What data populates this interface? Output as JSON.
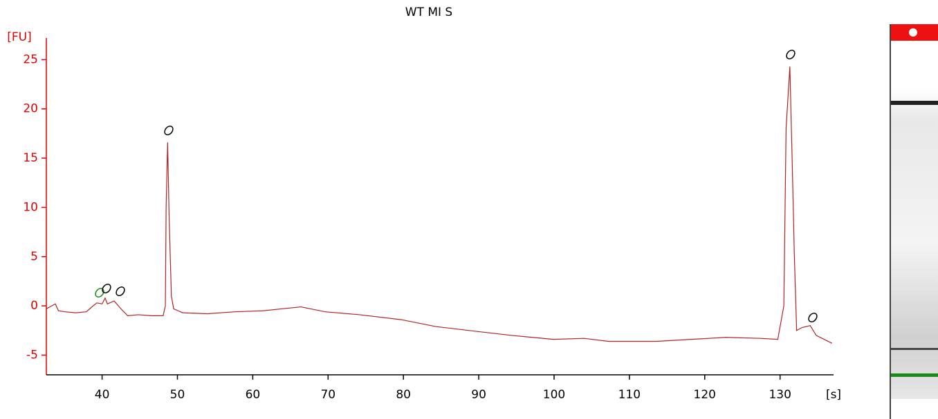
{
  "chart_data": {
    "type": "line",
    "title": "WT MI S",
    "y_label": "[FU]",
    "x_label": "[s]",
    "x": [
      32.6,
      33.8,
      34.2,
      35.1,
      36.5,
      37.9,
      38.8,
      39.3,
      40,
      40.4,
      40.7,
      41.6,
      42.5,
      43.4,
      44.8,
      46.6,
      48.1,
      48.4,
      48.5,
      48.7,
      48.9,
      49.2,
      49.5,
      50.1,
      50.7,
      54.0,
      57.6,
      61.3,
      66.4,
      69.6,
      74.2,
      79.7,
      84.3,
      89.8,
      94.4,
      99.9,
      104.0,
      107.2,
      113.6,
      118.2,
      122.8,
      127.4,
      129.7,
      130.5,
      130.8,
      131.3,
      131.6,
      131.9,
      132.2,
      132.9,
      134.0,
      134.8,
      136.9
    ],
    "series": [
      {
        "name": "WT MI S",
        "color": "#b22222",
        "values": [
          -0.3,
          0.2,
          -0.5,
          -0.6,
          -0.7,
          -0.6,
          0,
          0.3,
          0.2,
          0.8,
          0.2,
          0.5,
          -0.3,
          -1.0,
          -0.9,
          -1.0,
          -1.0,
          0,
          10,
          16.6,
          9,
          1,
          -0.3,
          -0.5,
          -0.7,
          -0.8,
          -0.6,
          -0.5,
          -0.1,
          -0.6,
          -0.9,
          -1.4,
          -2.1,
          -2.6,
          -3.0,
          -3.4,
          -3.3,
          -3.6,
          -3.6,
          -3.4,
          -3.2,
          -3.3,
          -3.4,
          0,
          18,
          24.3,
          15,
          5,
          -2.5,
          -2.2,
          -2.0,
          -3.0,
          -3.8
        ]
      }
    ],
    "xlim": [
      32.6,
      137.1
    ],
    "ylim": [
      -7,
      27.2
    ],
    "xticks": [
      40,
      50,
      60,
      70,
      80,
      90,
      100,
      110,
      120,
      130
    ],
    "yticks": [
      -5,
      0,
      5,
      10,
      15,
      20,
      25
    ],
    "y_axis_color": "#e00000"
  }
}
